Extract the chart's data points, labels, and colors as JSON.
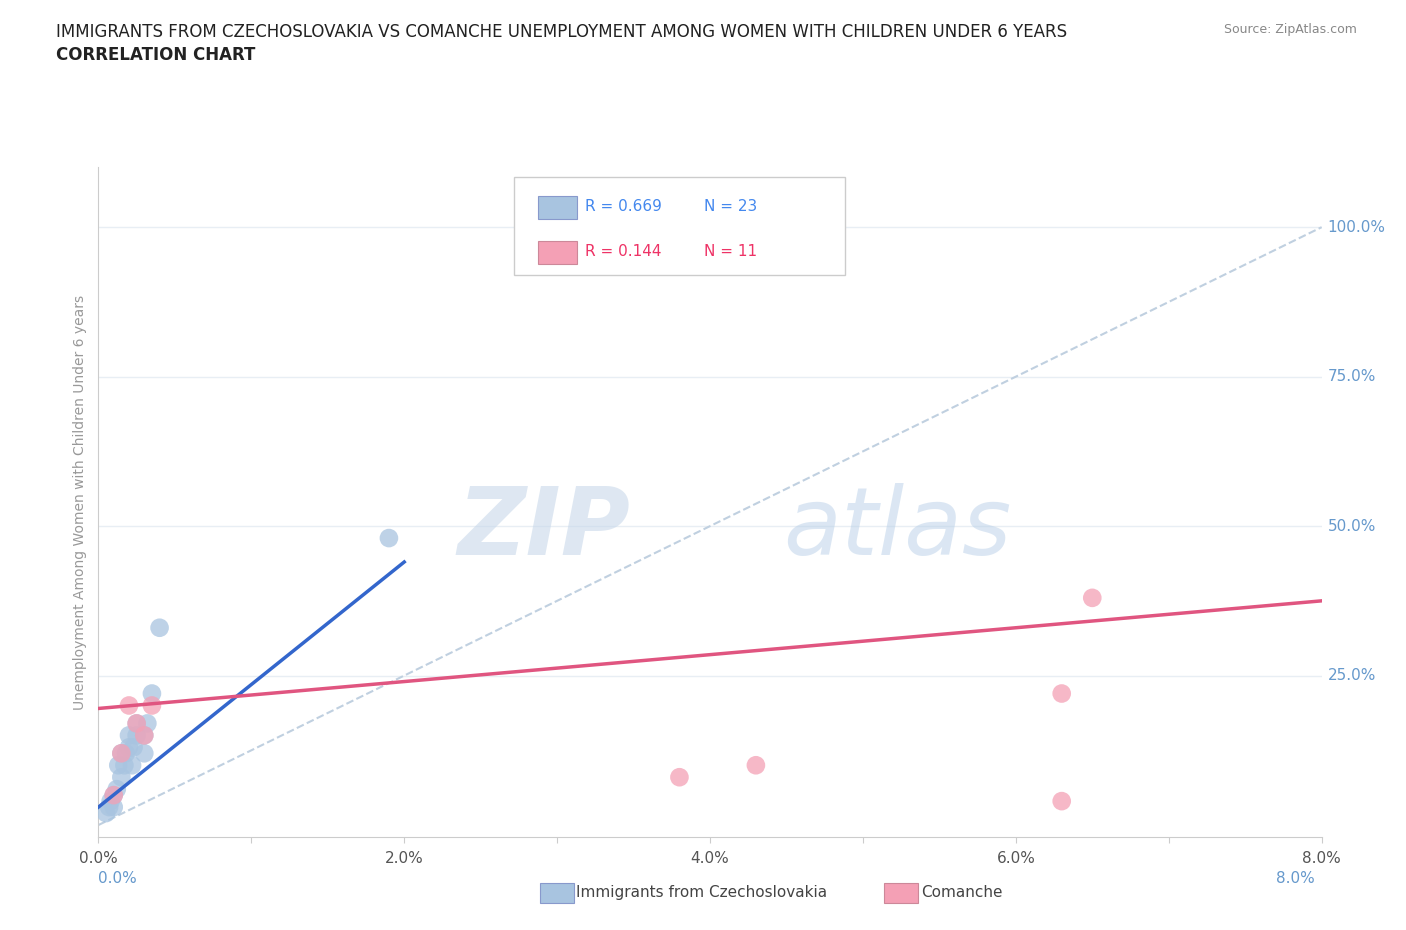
{
  "title_line1": "IMMIGRANTS FROM CZECHOSLOVAKIA VS COMANCHE UNEMPLOYMENT AMONG WOMEN WITH CHILDREN UNDER 6 YEARS",
  "title_line2": "CORRELATION CHART",
  "source": "Source: ZipAtlas.com",
  "ylabel": "Unemployment Among Women with Children Under 6 years",
  "xlim": [
    0.0,
    0.08
  ],
  "ylim": [
    -0.02,
    1.1
  ],
  "xticks": [
    0.0,
    0.01,
    0.02,
    0.03,
    0.04,
    0.05,
    0.06,
    0.07,
    0.08
  ],
  "xtick_labels": [
    "0.0%",
    "",
    "2.0%",
    "",
    "4.0%",
    "",
    "6.0%",
    "",
    "8.0%"
  ],
  "yticks_right": [
    0.25,
    0.5,
    0.75,
    1.0
  ],
  "ytick_labels_right": [
    "25.0%",
    "50.0%",
    "75.0%",
    "100.0%"
  ],
  "blue_r": "0.669",
  "blue_n": "23",
  "pink_r": "0.144",
  "pink_n": "11",
  "blue_color": "#a8c4e0",
  "pink_color": "#f4a0b5",
  "blue_line_color": "#3366cc",
  "pink_line_color": "#e05580",
  "ref_line_color": "#c0d0e0",
  "watermark_zip": "ZIP",
  "watermark_atlas": "atlas",
  "blue_scatter_x": [
    0.0005,
    0.0007,
    0.0008,
    0.001,
    0.001,
    0.0012,
    0.0013,
    0.0015,
    0.0015,
    0.0017,
    0.0018,
    0.002,
    0.002,
    0.0022,
    0.0023,
    0.0025,
    0.0025,
    0.003,
    0.003,
    0.0032,
    0.0035,
    0.004,
    0.019
  ],
  "blue_scatter_y": [
    0.02,
    0.03,
    0.04,
    0.03,
    0.05,
    0.06,
    0.1,
    0.12,
    0.08,
    0.1,
    0.12,
    0.13,
    0.15,
    0.1,
    0.13,
    0.15,
    0.17,
    0.12,
    0.15,
    0.17,
    0.22,
    0.33,
    0.48
  ],
  "pink_scatter_x": [
    0.001,
    0.0015,
    0.002,
    0.0025,
    0.003,
    0.0035,
    0.038,
    0.043,
    0.063,
    0.063,
    0.065
  ],
  "pink_scatter_y": [
    0.05,
    0.12,
    0.2,
    0.17,
    0.15,
    0.2,
    0.08,
    0.1,
    0.04,
    0.22,
    0.38
  ],
  "blue_trend_x": [
    0.0,
    0.02
  ],
  "blue_trend_y": [
    0.03,
    0.44
  ],
  "pink_trend_x": [
    0.0,
    0.08
  ],
  "pink_trend_y": [
    0.195,
    0.375
  ],
  "ref_line_x": [
    0.0,
    0.08
  ],
  "ref_line_y": [
    0.0,
    1.0
  ],
  "grid_color": "#e8eef4",
  "background_color": "#ffffff",
  "title_fontsize": 12,
  "subtitle_fontsize": 12,
  "tick_color_right": "#6699cc",
  "legend_color_blue": "#4488ee",
  "legend_color_pink": "#ee3366"
}
